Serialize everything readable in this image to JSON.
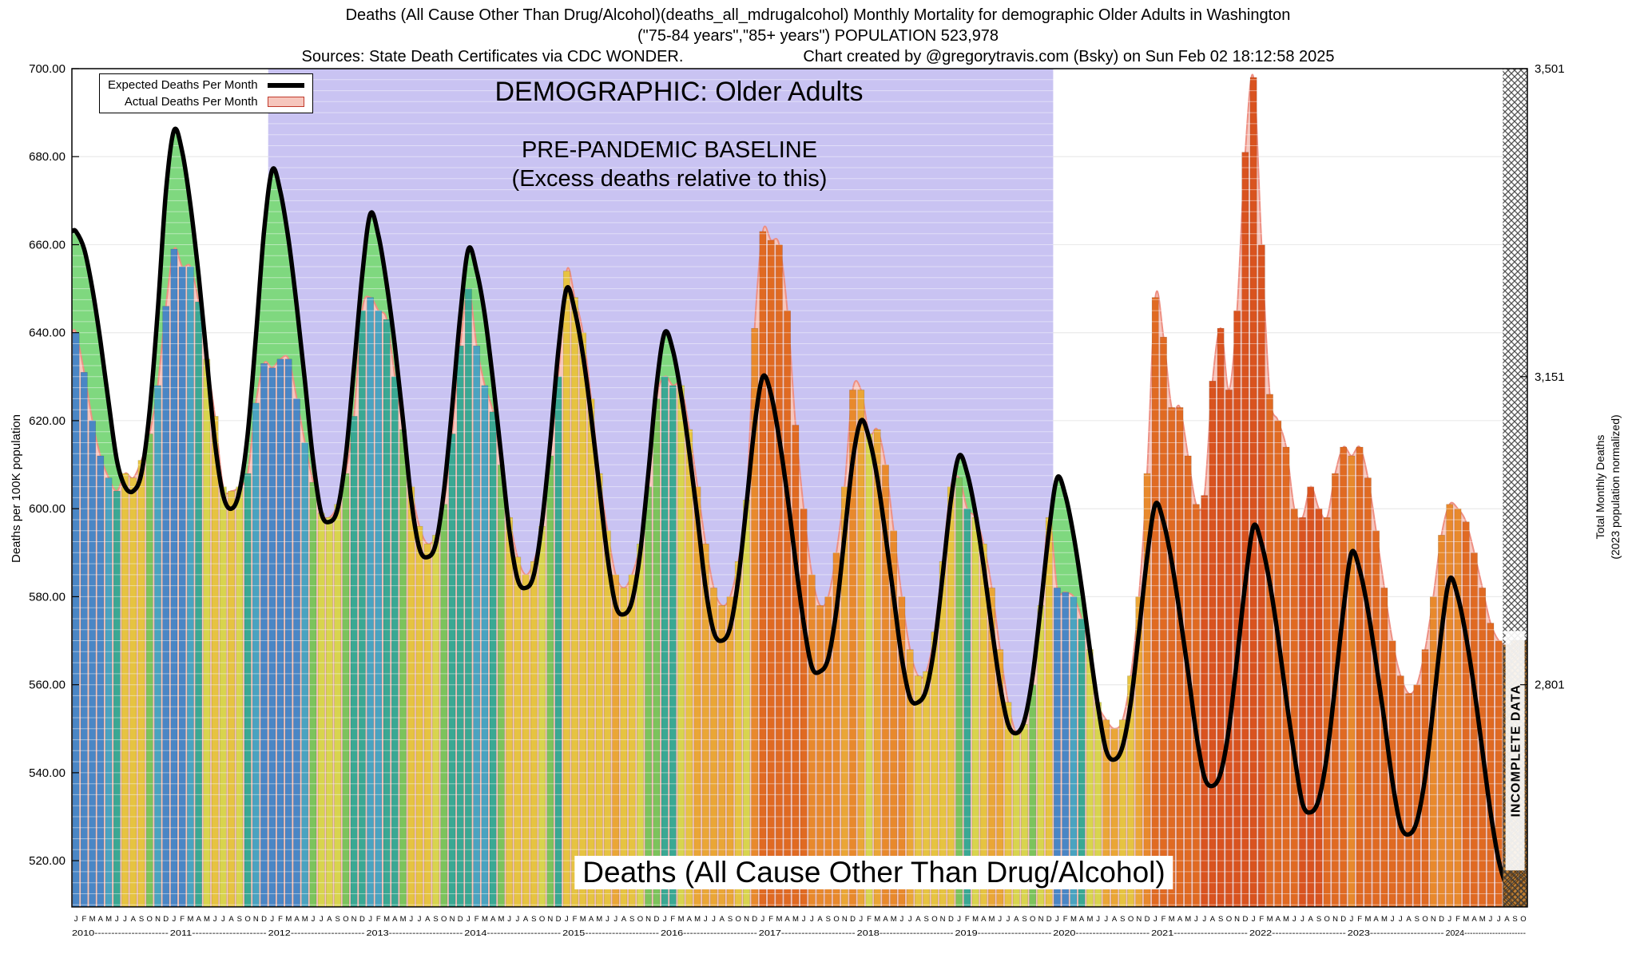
{
  "header": {
    "line1": "Deaths (All Cause Other Than Drug/Alcohol)(deaths_all_mdrugalcohol) Monthly Mortality for demographic Older Adults in Washington",
    "line2": "(\"75-84 years\",\"85+ years\") POPULATION 523,978",
    "source": "Sources: State Death Certificates via CDC WONDER.",
    "credit": "Chart created by @gregorytravis.com (Bsky) on Sun Feb 02 18:12:58 2025"
  },
  "legend": {
    "expected_label": "Expected Deaths Per Month",
    "actual_label": "Actual Deaths Per Month"
  },
  "annotations": {
    "demographic": "DEMOGRAPHIC: Older Adults",
    "baseline_title": "PRE-PANDEMIC BASELINE",
    "baseline_sub": "(Excess deaths relative to this)",
    "bottom_label": "Deaths (All Cause Other Than Drug/Alcohol)",
    "incomplete_label": "INCOMPLETE DATA"
  },
  "axes": {
    "left_label": "Deaths per 100K population",
    "right_label_line1": "Total Monthly Deaths",
    "right_label_line2": "(2023 population normalized)",
    "left_ticks": [
      {
        "label": "700.00",
        "value": 700
      },
      {
        "label": "680.00",
        "value": 680
      },
      {
        "label": "660.00",
        "value": 660
      },
      {
        "label": "640.00",
        "value": 640
      },
      {
        "label": "620.00",
        "value": 620
      },
      {
        "label": "600.00",
        "value": 600
      },
      {
        "label": "580.00",
        "value": 580
      },
      {
        "label": "560.00",
        "value": 560
      },
      {
        "label": "540.00",
        "value": 540
      },
      {
        "label": "520.00",
        "value": 520
      }
    ],
    "right_ticks": [
      {
        "label": "3,501",
        "value": 700
      },
      {
        "label": "3,151",
        "value": 630
      },
      {
        "label": "2,801",
        "value": 560
      }
    ]
  },
  "chart_data": {
    "type": "bar",
    "title": "Deaths (All Cause Other Than Drug/Alcohol) Monthly Mortality, Older Adults, Washington",
    "xlabel": "",
    "ylabel": "Deaths per 100K population",
    "y2label": "Total Monthly Deaths (2023 population normalized)",
    "ylim": [
      509.5,
      700
    ],
    "grid": true,
    "legend_position": "top-left",
    "years": [
      {
        "label": "2010",
        "months": "JFMAMJJASOND"
      },
      {
        "label": "2011",
        "months": "JFMAMJJASOND"
      },
      {
        "label": "2012",
        "months": "JFMAMJJASOND"
      },
      {
        "label": "2013",
        "months": "JFMAMJJASOND"
      },
      {
        "label": "2014",
        "months": "JFMAMJJASOND"
      },
      {
        "label": "2015",
        "months": "JFMAMJJASOND"
      },
      {
        "label": "2016",
        "months": "JFMAMJJASOND"
      },
      {
        "label": "2017",
        "months": "JFMAMJJASOND"
      },
      {
        "label": "2018",
        "months": "JFMAMJJASOND"
      },
      {
        "label": "2019",
        "months": "JFMAMJJASOND"
      },
      {
        "label": "2020",
        "months": "JFMAMJJASOND"
      },
      {
        "label": "2021",
        "months": "JFMAMJJASOND"
      },
      {
        "label": "2022",
        "months": "JFMAMJJASOND"
      },
      {
        "label": "2023",
        "months": "JFMAMJJASOND"
      },
      {
        "label": "2024",
        "months": "JFMAMJJASO"
      }
    ],
    "series": [
      {
        "name": "Actual Deaths Per Month",
        "type": "bar",
        "values": [
          640,
          631,
          620,
          612,
          607,
          604,
          608,
          607,
          611,
          617,
          628,
          646,
          659,
          655,
          655,
          647,
          634,
          621,
          605,
          604,
          605,
          608,
          624,
          633,
          632,
          634,
          634,
          625,
          615,
          606,
          599,
          598,
          601,
          608,
          621,
          645,
          648,
          645,
          643,
          630,
          618,
          605,
          596,
          592,
          594,
          601,
          617,
          637,
          650,
          637,
          628,
          622,
          610,
          598,
          589,
          585,
          588,
          596,
          612,
          630,
          654,
          648,
          640,
          625,
          608,
          595,
          585,
          582,
          585,
          592,
          605,
          625,
          630,
          628,
          628,
          618,
          605,
          592,
          582,
          578,
          580,
          588,
          602,
          641,
          663,
          661,
          660,
          645,
          619,
          600,
          585,
          578,
          580,
          590,
          605,
          627,
          627,
          617,
          618,
          610,
          595,
          580,
          568,
          562,
          563,
          572,
          588,
          605,
          607,
          600,
          598,
          592,
          582,
          568,
          556,
          549,
          551,
          560,
          578,
          598,
          582,
          581,
          580,
          575,
          568,
          556,
          552,
          550,
          552,
          562,
          580,
          608,
          648,
          639,
          623,
          623,
          612,
          601,
          603,
          629,
          641,
          627,
          645,
          681,
          698,
          660,
          626,
          620,
          614,
          600,
          598,
          605,
          600,
          598,
          608,
          614,
          612,
          614,
          607,
          595,
          582,
          570,
          562,
          558,
          560,
          568,
          580,
          594,
          601,
          600,
          597,
          590,
          582,
          574,
          570,
          569,
          570,
          570
        ]
      },
      {
        "name": "Expected Deaths Per Month",
        "type": "line",
        "values": [
          663,
          659,
          650,
          638,
          624,
          611,
          605,
          604,
          608,
          622,
          645,
          672,
          686,
          681,
          669,
          653,
          634,
          615,
          603,
          600,
          604,
          617,
          639,
          663,
          677,
          672,
          661,
          646,
          629,
          611,
          599,
          597,
          600,
          612,
          632,
          653,
          667,
          662,
          651,
          637,
          620,
          602,
          591,
          589,
          592,
          604,
          623,
          644,
          659,
          654,
          644,
          629,
          612,
          595,
          584,
          582,
          585,
          597,
          615,
          636,
          650,
          645,
          635,
          621,
          605,
          589,
          578,
          576,
          579,
          590,
          608,
          628,
          640,
          636,
          626,
          613,
          598,
          582,
          572,
          570,
          573,
          584,
          601,
          619,
          630,
          626,
          616,
          603,
          588,
          574,
          564,
          563,
          566,
          577,
          594,
          611,
          620,
          616,
          607,
          594,
          580,
          566,
          557,
          556,
          559,
          569,
          585,
          602,
          612,
          608,
          599,
          587,
          573,
          560,
          551,
          549,
          552,
          562,
          578,
          595,
          607,
          603,
          594,
          582,
          568,
          555,
          545,
          543,
          546,
          556,
          572,
          589,
          601,
          597,
          588,
          576,
          563,
          549,
          539,
          537,
          540,
          550,
          566,
          583,
          596,
          592,
          583,
          571,
          557,
          544,
          533,
          531,
          534,
          544,
          560,
          577,
          590,
          586,
          577,
          565,
          552,
          538,
          528,
          526,
          529,
          539,
          555,
          572,
          584,
          580,
          571,
          559,
          545,
          531,
          520,
          514,
          511,
          510
        ]
      }
    ],
    "baseline_region": {
      "start_month_index": 24,
      "end_month_index": 120,
      "color": "#c9c3f2"
    },
    "incomplete_start_index": 175,
    "colors": {
      "actual_area": "#f6c6bd",
      "actual_edge": "#ee8f82",
      "expected_area": "#7fd87f",
      "expected_line": "#000000",
      "baseline_region": "#c9c3f2",
      "incomplete_bar": "#c08035",
      "grid_major": "#d8d8d8",
      "grid_band": "#ffffff"
    },
    "deviation_palette": [
      {
        "max": -20,
        "color": "#4a86c5"
      },
      {
        "max": -12,
        "color": "#4aa3c0"
      },
      {
        "max": -6,
        "color": "#3aa893"
      },
      {
        "max": -2,
        "color": "#7cc35c"
      },
      {
        "max": 2,
        "color": "#d8d44e"
      },
      {
        "max": 6,
        "color": "#e6c341"
      },
      {
        "max": 12,
        "color": "#eaa636"
      },
      {
        "max": 25,
        "color": "#e8892c"
      },
      {
        "max": 60,
        "color": "#e06a22"
      },
      {
        "max": 100000,
        "color": "#d9531f"
      }
    ]
  }
}
